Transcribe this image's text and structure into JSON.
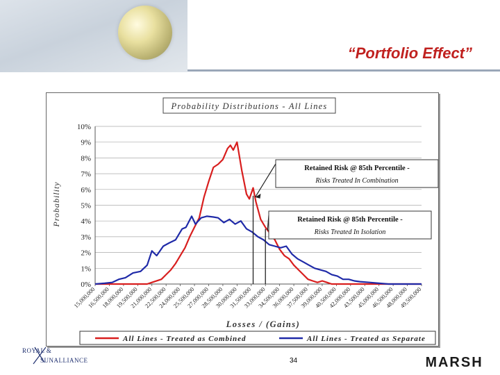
{
  "slide": {
    "title": "“Portfolio Effect”",
    "page_number": "34",
    "logo_left_line1": "ROYAL &",
    "logo_left_line2": "SUNALLIANCE",
    "logo_right": "MARSH"
  },
  "colors": {
    "combined": "#d81e1e",
    "separate": "#1f2aa8",
    "title_red": "#c0211f"
  },
  "chart_data": {
    "type": "line",
    "title": "Probability Distributions - All Lines",
    "xlabel": "Losses / (Gains)",
    "ylabel": "Probability",
    "ylim": [
      0,
      10
    ],
    "yticks": [
      "0%",
      "1%",
      "2%",
      "3%",
      "4%",
      "5%",
      "6%",
      "7%",
      "8%",
      "9%",
      "10%"
    ],
    "xticks": [
      "15,000,000",
      "16,500,000",
      "18,000,000",
      "19,500,000",
      "21,000,000",
      "22,500,000",
      "24,000,000",
      "25,500,000",
      "27,000,000",
      "28,500,000",
      "30,000,000",
      "31,500,000",
      "33,000,000",
      "34,500,000",
      "36,000,000",
      "37,500,000",
      "39,000,000",
      "40,500,000",
      "42,000,000",
      "43,500,000",
      "45,000,000",
      "46,500,000",
      "48,000,000",
      "49,500,000"
    ],
    "grid": true,
    "legend_position": "bottom",
    "series": [
      {
        "name": "All Lines - Treated as Combined",
        "points": [
          [
            15.0,
            0
          ],
          [
            16.5,
            0
          ],
          [
            18.0,
            0
          ],
          [
            19.5,
            0
          ],
          [
            20.5,
            0
          ],
          [
            21.0,
            0.1
          ],
          [
            22.0,
            0.3
          ],
          [
            22.5,
            0.6
          ],
          [
            23.0,
            0.9
          ],
          [
            23.5,
            1.3
          ],
          [
            24.0,
            1.8
          ],
          [
            24.5,
            2.3
          ],
          [
            25.0,
            3.0
          ],
          [
            25.5,
            3.6
          ],
          [
            26.0,
            4.2
          ],
          [
            26.5,
            5.5
          ],
          [
            27.0,
            6.5
          ],
          [
            27.5,
            7.4
          ],
          [
            28.0,
            7.6
          ],
          [
            28.5,
            7.9
          ],
          [
            29.0,
            8.6
          ],
          [
            29.3,
            8.8
          ],
          [
            29.6,
            8.5
          ],
          [
            30.0,
            9.0
          ],
          [
            30.5,
            7.2
          ],
          [
            31.0,
            5.7
          ],
          [
            31.3,
            5.4
          ],
          [
            31.7,
            6.1
          ],
          [
            32.0,
            5.2
          ],
          [
            32.5,
            4.1
          ],
          [
            33.0,
            3.6
          ],
          [
            33.5,
            3.2
          ],
          [
            34.0,
            2.8
          ],
          [
            34.5,
            2.2
          ],
          [
            35.0,
            1.8
          ],
          [
            35.5,
            1.6
          ],
          [
            36.0,
            1.2
          ],
          [
            36.5,
            0.9
          ],
          [
            37.0,
            0.6
          ],
          [
            37.5,
            0.3
          ],
          [
            38.0,
            0.2
          ],
          [
            38.5,
            0.1
          ],
          [
            39.0,
            0.2
          ],
          [
            39.5,
            0.1
          ],
          [
            40.0,
            0
          ],
          [
            45.0,
            0
          ],
          [
            49.5,
            0
          ]
        ]
      },
      {
        "name": "All Lines - Treated as Separate",
        "points": [
          [
            15.0,
            0
          ],
          [
            16.0,
            0.05
          ],
          [
            16.8,
            0.1
          ],
          [
            17.5,
            0.3
          ],
          [
            18.2,
            0.4
          ],
          [
            19.0,
            0.7
          ],
          [
            19.8,
            0.8
          ],
          [
            20.5,
            1.2
          ],
          [
            21.0,
            2.1
          ],
          [
            21.5,
            1.8
          ],
          [
            22.2,
            2.4
          ],
          [
            22.8,
            2.6
          ],
          [
            23.5,
            2.8
          ],
          [
            24.2,
            3.5
          ],
          [
            24.6,
            3.6
          ],
          [
            25.2,
            4.3
          ],
          [
            25.6,
            3.8
          ],
          [
            26.2,
            4.2
          ],
          [
            26.8,
            4.3
          ],
          [
            27.5,
            4.25
          ],
          [
            28.0,
            4.2
          ],
          [
            28.6,
            3.9
          ],
          [
            29.2,
            4.1
          ],
          [
            29.8,
            3.8
          ],
          [
            30.4,
            4.0
          ],
          [
            31.0,
            3.5
          ],
          [
            31.6,
            3.3
          ],
          [
            32.2,
            3.0
          ],
          [
            32.8,
            2.8
          ],
          [
            33.4,
            2.5
          ],
          [
            34.0,
            2.4
          ],
          [
            34.6,
            2.3
          ],
          [
            35.2,
            2.4
          ],
          [
            35.8,
            1.9
          ],
          [
            36.4,
            1.6
          ],
          [
            37.0,
            1.4
          ],
          [
            37.6,
            1.2
          ],
          [
            38.2,
            1.0
          ],
          [
            38.8,
            0.9
          ],
          [
            39.4,
            0.8
          ],
          [
            40.0,
            0.6
          ],
          [
            40.6,
            0.5
          ],
          [
            41.2,
            0.3
          ],
          [
            41.8,
            0.3
          ],
          [
            42.4,
            0.2
          ],
          [
            43.0,
            0.15
          ],
          [
            44.0,
            0.1
          ],
          [
            45.0,
            0.05
          ],
          [
            46.0,
            0
          ],
          [
            49.5,
            0
          ]
        ]
      }
    ],
    "annotations": [
      {
        "title": "Retained Risk @ 85th Percentile -",
        "subtitle": "Risks Treated In Combination",
        "x": 31.7,
        "y": 5.6
      },
      {
        "title": "Retained Risk @ 85th Percentile -",
        "subtitle": "Risks Treated In Isolation",
        "x": 33.0,
        "y": 3.5
      }
    ]
  }
}
